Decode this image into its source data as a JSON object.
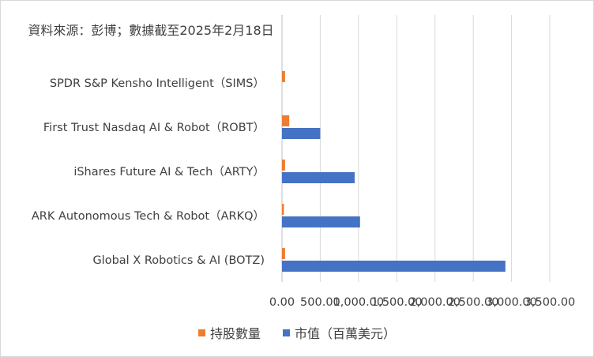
{
  "note": "資料來源：彭博；數據截至2025年2月18日",
  "chart_data": {
    "type": "bar",
    "orientation": "horizontal",
    "categories": [
      "Global X Robotics & AI (BOTZ)",
      "ARK Autonomous Tech & Robot（ARKQ）",
      "iShares Future AI & Tech（ARTY）",
      "First Trust Nasdaq AI & Robot（ROBT）",
      "SPDR S&P Kensho Intelligent（SIMS）"
    ],
    "series": [
      {
        "name": "持股數量",
        "color": "#ED7D31",
        "values": [
          40,
          25,
          40,
          95,
          40
        ]
      },
      {
        "name": "市值（百萬美元）",
        "color": "#4472C4",
        "values": [
          2920,
          1020,
          950,
          500,
          0
        ]
      }
    ],
    "xlim": [
      0,
      3500
    ],
    "xticks": [
      "0.00",
      "500.00",
      "1,000.00",
      "1,500.00",
      "2,000.00",
      "2,500.00",
      "3,000.00",
      "3,500.00"
    ],
    "xtick_values": [
      0,
      500,
      1000,
      1500,
      2000,
      2500,
      3000,
      3500
    ],
    "grid": "vertical",
    "legend_position": "bottom"
  }
}
